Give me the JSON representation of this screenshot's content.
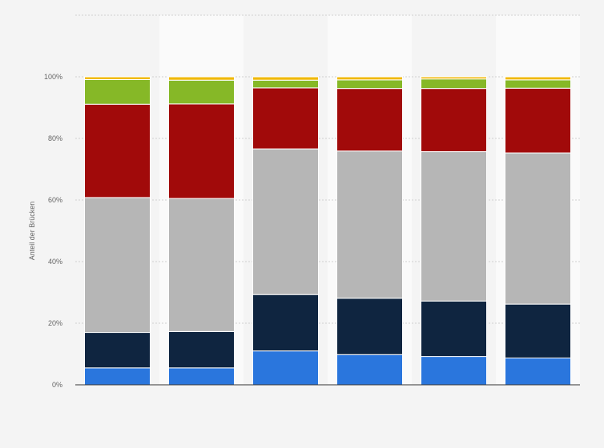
{
  "chart_data": {
    "type": "bar",
    "stacked": true,
    "title": "",
    "xlabel": "",
    "ylabel": "Anteil der Brücken",
    "categories": [
      "",
      "",
      "",
      "",
      "",
      ""
    ],
    "yticks": [
      "0%",
      "20%",
      "40%",
      "60%",
      "80%",
      "100%"
    ],
    "ylim": [
      0,
      120
    ],
    "grid": true,
    "legend": "none",
    "series": [
      {
        "color": "#2a76dd",
        "values": [
          5.5,
          5.5,
          11.0,
          9.8,
          9.2,
          8.7
        ]
      },
      {
        "color": "#0f2540",
        "values": [
          11.5,
          11.8,
          18.3,
          18.3,
          18.0,
          17.5
        ]
      },
      {
        "color": "#b6b6b6",
        "values": [
          43.8,
          43.2,
          47.3,
          47.8,
          48.5,
          49.1
        ]
      },
      {
        "color": "#a10a0a",
        "values": [
          30.3,
          30.7,
          19.8,
          20.3,
          20.5,
          21.0
        ]
      },
      {
        "color": "#86b827",
        "values": [
          8.0,
          7.7,
          2.5,
          2.8,
          3.1,
          2.7
        ]
      },
      {
        "color": "#f0b90b",
        "values": [
          0.9,
          1.1,
          1.1,
          1.0,
          0.7,
          1.0
        ]
      }
    ]
  }
}
